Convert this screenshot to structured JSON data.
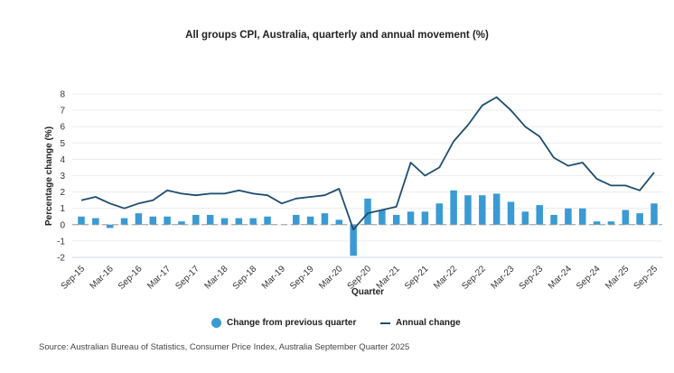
{
  "chart_data": {
    "type": "bar",
    "title": "All groups CPI, Australia, quarterly and annual movement (%)",
    "xlabel": "Quarter",
    "ylabel": "Percentage change (%)",
    "ylim": [
      -2,
      8
    ],
    "yticks": [
      8,
      7,
      6,
      5,
      4,
      3,
      2,
      1,
      0,
      -1,
      -2
    ],
    "grid": true,
    "legend_position": "bottom",
    "x": [
      "Sep-15",
      "Dec-15",
      "Mar-16",
      "Jun-16",
      "Sep-16",
      "Dec-16",
      "Mar-17",
      "Jun-17",
      "Sep-17",
      "Dec-17",
      "Mar-18",
      "Jun-18",
      "Sep-18",
      "Dec-18",
      "Mar-19",
      "Jun-19",
      "Sep-19",
      "Dec-19",
      "Mar-20",
      "Jun-20",
      "Sep-20",
      "Dec-20",
      "Mar-21",
      "Jun-21",
      "Sep-21",
      "Dec-21",
      "Mar-22",
      "Jun-22",
      "Sep-22",
      "Dec-22",
      "Mar-23",
      "Jun-23",
      "Sep-23",
      "Dec-23",
      "Mar-24",
      "Jun-24",
      "Sep-24",
      "Dec-24",
      "Mar-25",
      "Jun-25",
      "Sep-25"
    ],
    "xtick_labels": [
      "Sep-15",
      "Mar-16",
      "Sep-16",
      "Mar-17",
      "Sep-17",
      "Mar-18",
      "Sep-18",
      "Mar-19",
      "Sep-19",
      "Mar-20",
      "Sep-20",
      "Mar-21",
      "Sep-21",
      "Mar-22",
      "Sep-22",
      "Mar-23",
      "Sep-23",
      "Mar-24",
      "Sep-24",
      "Mar-25",
      "Sep-25"
    ],
    "series": [
      {
        "name": "Change from previous quarter",
        "type": "bar",
        "color": "#3a9ad3",
        "values": [
          0.5,
          0.4,
          -0.2,
          0.4,
          0.7,
          0.5,
          0.5,
          0.2,
          0.6,
          0.6,
          0.4,
          0.4,
          0.4,
          0.5,
          0.0,
          0.6,
          0.5,
          0.7,
          0.3,
          -1.9,
          1.6,
          0.9,
          0.6,
          0.8,
          0.8,
          1.3,
          2.1,
          1.8,
          1.8,
          1.9,
          1.4,
          0.8,
          1.2,
          0.6,
          1.0,
          1.0,
          0.2,
          0.2,
          0.9,
          0.7,
          1.3
        ]
      },
      {
        "name": "Annual change",
        "type": "line",
        "color": "#1d4d70",
        "values": [
          1.5,
          1.7,
          1.3,
          1.0,
          1.3,
          1.5,
          2.1,
          1.9,
          1.8,
          1.9,
          1.9,
          2.1,
          1.9,
          1.8,
          1.3,
          1.6,
          1.7,
          1.8,
          2.2,
          -0.3,
          0.7,
          0.9,
          1.1,
          3.8,
          3.0,
          3.5,
          5.1,
          6.1,
          7.3,
          7.8,
          7.0,
          6.0,
          5.4,
          4.1,
          3.6,
          3.8,
          2.8,
          2.4,
          2.4,
          2.1,
          3.2
        ]
      }
    ]
  },
  "source": "Source: Australian Bureau of Statistics, Consumer Price Index, Australia September Quarter 2025"
}
